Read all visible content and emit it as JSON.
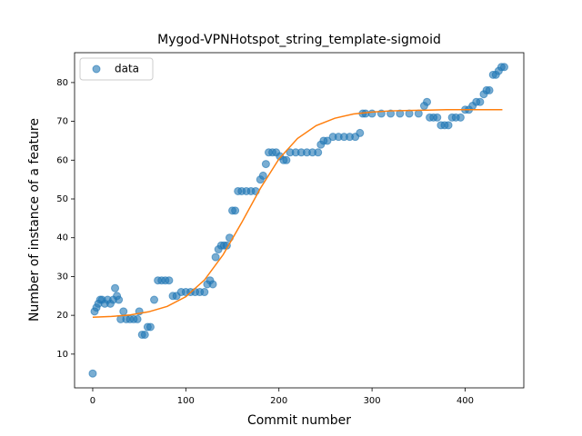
{
  "chart_data": {
    "type": "scatter",
    "title": "Mygod-VPNHotspot_string_template-sigmoid",
    "xlabel": "Commit number",
    "ylabel": "Number of instance of a feature",
    "xlim": [
      -19.5,
      463
    ],
    "ylim": [
      1.3,
      87.7
    ],
    "xticks": [
      0,
      100,
      200,
      300,
      400
    ],
    "yticks": [
      10,
      20,
      30,
      40,
      50,
      60,
      70,
      80
    ],
    "legend": "upper left",
    "series": [
      {
        "name": "data",
        "color": "#1f77b4",
        "x": [
          0,
          2,
          4,
          6,
          8,
          10,
          13,
          16,
          19,
          22,
          24,
          26,
          28,
          30,
          33,
          36,
          40,
          44,
          48,
          50,
          53,
          56,
          59,
          62,
          66,
          70,
          74,
          78,
          82,
          86,
          90,
          95,
          100,
          105,
          110,
          115,
          120,
          123,
          126,
          129,
          132,
          135,
          138,
          141,
          144,
          147,
          150,
          153,
          156,
          160,
          165,
          170,
          175,
          180,
          183,
          186,
          189,
          193,
          197,
          201,
          205,
          208,
          212,
          218,
          224,
          230,
          236,
          242,
          245,
          248,
          252,
          258,
          264,
          270,
          276,
          282,
          287,
          290,
          293,
          300,
          310,
          320,
          330,
          340,
          350,
          356,
          359,
          362,
          366,
          370,
          374,
          378,
          382,
          386,
          390,
          395,
          400,
          404,
          408,
          412,
          416,
          420,
          423,
          426,
          430,
          433,
          436,
          439,
          442
        ],
        "values": [
          5,
          21,
          22,
          23,
          24,
          24,
          23,
          24,
          23,
          24,
          27,
          25,
          24,
          19,
          21,
          19,
          19,
          19,
          19,
          21,
          15,
          15,
          17,
          17,
          24,
          29,
          29,
          29,
          29,
          25,
          25,
          26,
          26,
          26,
          26,
          26,
          26,
          28,
          29,
          28,
          35,
          37,
          38,
          38,
          38,
          40,
          47,
          47,
          52,
          52,
          52,
          52,
          52,
          55,
          56,
          59,
          62,
          62,
          62,
          61,
          60,
          60,
          62,
          62,
          62,
          62,
          62,
          62,
          64,
          65,
          65,
          66,
          66,
          66,
          66,
          66,
          67,
          72,
          72,
          72,
          72,
          72,
          72,
          72,
          72,
          74,
          75,
          71,
          71,
          71,
          69,
          69,
          69,
          71,
          71,
          71,
          73,
          73,
          74,
          75,
          75,
          77,
          78,
          78,
          82,
          82,
          83,
          84,
          84
        ]
      }
    ],
    "fit": {
      "color": "#ff7f0e",
      "x": [
        0,
        20,
        40,
        60,
        80,
        100,
        120,
        140,
        160,
        180,
        200,
        220,
        240,
        260,
        280,
        300,
        320,
        340,
        360,
        380,
        400,
        420,
        440
      ],
      "values": [
        19.5,
        19.7,
        20.1,
        20.9,
        22.3,
        24.8,
        29.1,
        35.6,
        43.9,
        52.7,
        60.3,
        65.6,
        68.9,
        70.8,
        71.9,
        72.4,
        72.7,
        72.8,
        72.9,
        73.0,
        73.0,
        73.0,
        73.0
      ]
    }
  }
}
